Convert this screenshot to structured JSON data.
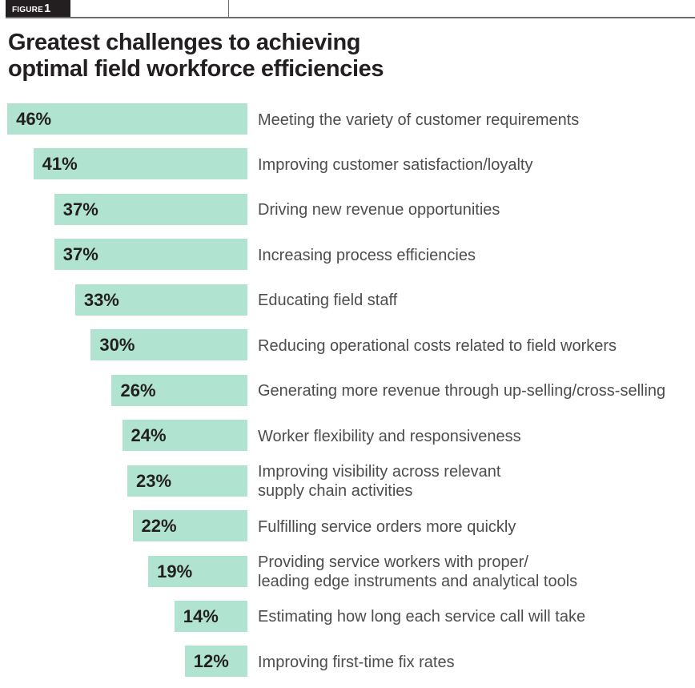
{
  "figure_tag": {
    "word": "FIGURE",
    "number": "1"
  },
  "title_lines": [
    "Greatest challenges to achieving",
    "optimal field workforce efficiencies"
  ],
  "colors": {
    "bar": "#b0e4d0",
    "text": "#231f20",
    "label": "#4d4d4d"
  },
  "chart_data": {
    "type": "bar",
    "orientation": "horizontal",
    "title": "Greatest challenges to achieving optimal field workforce efficiencies",
    "unit": "%",
    "categories": [
      [
        "Meeting the variety of customer requirements"
      ],
      [
        "Improving customer satisfaction/loyalty"
      ],
      [
        "Driving new revenue opportunities"
      ],
      [
        "Increasing process efficiencies"
      ],
      [
        "Educating field staff"
      ],
      [
        "Reducing operational costs related to field workers"
      ],
      [
        "Generating more revenue through up-selling/cross-selling"
      ],
      [
        "Worker flexibility and responsiveness"
      ],
      [
        "Improving visibility across relevant",
        "supply chain activities"
      ],
      [
        "Fulfilling service orders more quickly"
      ],
      [
        "Providing service workers with proper/",
        "leading edge instruments and analytical tools"
      ],
      [
        "Estimating how long each service call will take"
      ],
      [
        "Improving first-time fix rates"
      ]
    ],
    "values": [
      46,
      41,
      37,
      37,
      33,
      30,
      26,
      24,
      23,
      22,
      19,
      14,
      12
    ],
    "value_labels": [
      "46%",
      "41%",
      "37%",
      "37%",
      "33%",
      "30%",
      "26%",
      "24%",
      "23%",
      "22%",
      "19%",
      "14%",
      "12%"
    ]
  }
}
